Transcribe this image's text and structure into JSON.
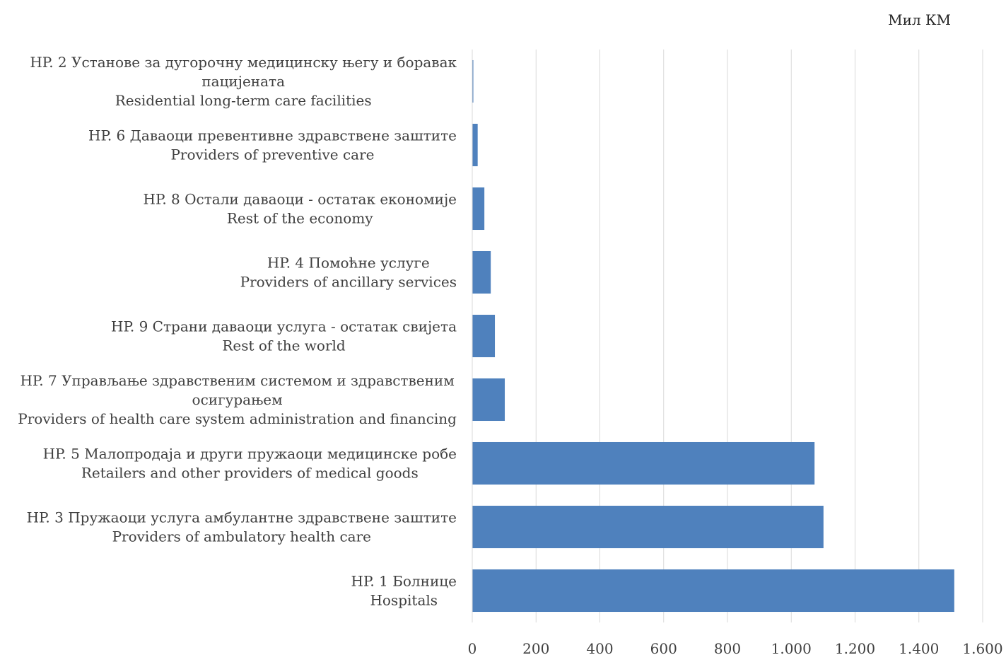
{
  "chart_data": {
    "type": "bar",
    "orientation": "horizontal",
    "unit_label": "Мил КМ",
    "categories": [
      [
        "HP. 2  Установе за дугорочну медицинску његу и боравак",
        "пацијената",
        "Residential long-term care facilities"
      ],
      [
        "HP. 6 Даваоци превентивне здравствене заштите",
        "Providers of preventive care"
      ],
      [
        "HP. 8 Остали даваоци - остатак економије",
        "Rest of the economy"
      ],
      [
        "HP. 4  Помоћне услуге",
        "Providers of ancillary services"
      ],
      [
        "HP. 9 Страни даваоци услуга - остатак свијета",
        "Rest of the world"
      ],
      [
        "HP. 7 Управљање здравственим системом и здравственим",
        "осигурањем",
        "Providers of health care system administration and financing"
      ],
      [
        "HP. 5 Малопродаја и други пружаоци медицинске робе",
        "Retailers and other providers of medical goods"
      ],
      [
        "HP. 3  Пружаоци услуга амбулантне здравствене заштите",
        "Providers of ambulatory health care"
      ],
      [
        "HP. 1  Болнице",
        "Hospitals"
      ]
    ],
    "values": [
      3,
      17,
      38,
      58,
      71,
      102,
      1073,
      1101,
      1511
    ],
    "xlim": [
      0,
      1600
    ],
    "xticks": [
      0,
      200,
      400,
      600,
      800,
      1000,
      1200,
      1400,
      1600
    ],
    "xtick_labels": [
      "0",
      "200",
      "400",
      "600",
      "800",
      "1.000",
      "1.200",
      "1.400",
      "1.600"
    ],
    "grid": "vertical",
    "legend": "none",
    "bar_color": "#4f81bd",
    "grid_color": "#d9d9d9"
  }
}
